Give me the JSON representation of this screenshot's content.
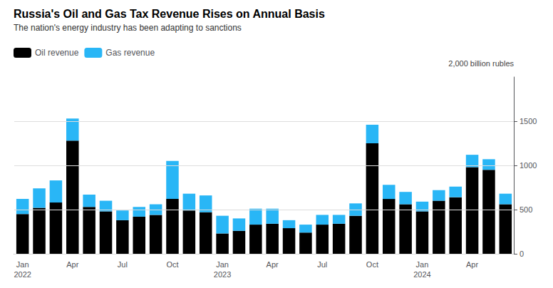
{
  "chart_data": {
    "type": "bar",
    "title": "Russia's Oil and Gas Tax Revenue Rises on Annual Basis",
    "subtitle": "The nation's energy industry has been adapting to sanctions",
    "ylabel": "2,000 billion rubles",
    "categories": [
      "Jan\n2022",
      null,
      null,
      "Apr",
      null,
      null,
      "Jul",
      null,
      null,
      "Oct",
      null,
      null,
      "Jan\n2023",
      null,
      null,
      "Apr",
      null,
      null,
      "Jul",
      null,
      null,
      "Oct",
      null,
      null,
      "Jan\n2024",
      null,
      null,
      "Apr",
      null,
      null
    ],
    "series": [
      {
        "name": "Oil revenue",
        "color": "#000000",
        "values": [
          450,
          520,
          580,
          1280,
          530,
          480,
          380,
          420,
          440,
          620,
          490,
          470,
          230,
          260,
          330,
          340,
          290,
          240,
          330,
          340,
          430,
          1250,
          620,
          560,
          480,
          600,
          640,
          980,
          950,
          560
        ]
      },
      {
        "name": "Gas revenue",
        "color": "#29B6F6",
        "values": [
          170,
          220,
          250,
          250,
          140,
          120,
          110,
          110,
          120,
          430,
          190,
          190,
          200,
          140,
          180,
          170,
          90,
          90,
          110,
          100,
          140,
          210,
          160,
          140,
          110,
          120,
          120,
          140,
          120,
          120
        ]
      }
    ],
    "ylim": [
      0,
      2000
    ],
    "yticks": [
      0,
      500,
      1000,
      1500
    ],
    "stacked": true,
    "grid": true,
    "legend": "upper left"
  }
}
